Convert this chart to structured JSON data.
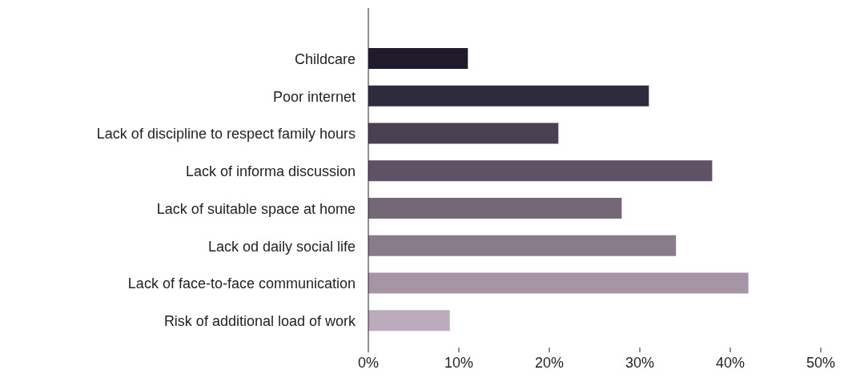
{
  "chart_data": {
    "type": "bar",
    "orientation": "horizontal",
    "categories": [
      "Childcare",
      "Poor internet",
      "Lack of discipline to respect family hours",
      "Lack of informa discussion",
      "Lack of suitable space at home",
      "Lack od daily social life",
      "Lack of face-to-face communication",
      "Risk of additional load of work"
    ],
    "values": [
      11,
      31,
      21,
      38,
      28,
      34,
      42,
      9
    ],
    "colors": [
      "#1f1b2b",
      "#302a3e",
      "#4a4052",
      "#5e5264",
      "#756876",
      "#897c8a",
      "#a595a6",
      "#bcabbd"
    ],
    "xlim": [
      0,
      50
    ],
    "xticks": [
      {
        "value": 0,
        "label": "0%"
      },
      {
        "value": 10,
        "label": "10%"
      },
      {
        "value": 20,
        "label": "20%"
      },
      {
        "value": 30,
        "label": "30%"
      },
      {
        "value": 40,
        "label": "40%"
      },
      {
        "value": 50,
        "label": "50%"
      }
    ],
    "grid": false
  }
}
